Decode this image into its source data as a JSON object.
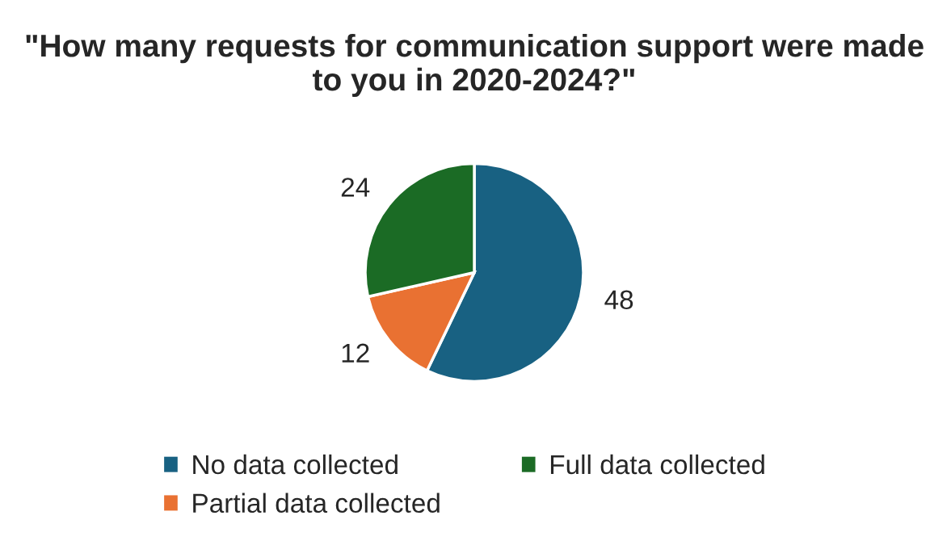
{
  "chart_data": {
    "type": "pie",
    "title": "\"How many requests for communication support were made to you in 2020-2024?\"",
    "categories": [
      "No data collected",
      "Partial data collected",
      "Full data collected"
    ],
    "values": [
      48,
      12,
      24
    ],
    "colors": [
      "#186182",
      "#e97132",
      "#1b6b25"
    ],
    "data_labels": true,
    "legend": "bottom"
  }
}
